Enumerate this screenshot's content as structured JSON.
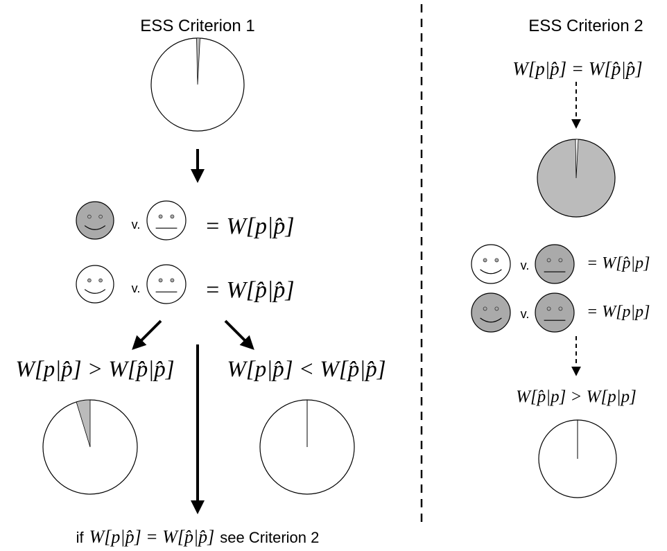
{
  "criterion_1": {
    "title": "ESS Criterion 1",
    "rows": [
      {
        "separator": "v.",
        "formula": "= W[p|p̂]"
      },
      {
        "separator": "v.",
        "formula": "= W[p̂|p̂]"
      }
    ],
    "branches": {
      "left": "W[p|p̂] > W[p̂|p̂]",
      "right": "W[p|p̂] < W[p̂|p̂]"
    },
    "footer": {
      "prefix": "if",
      "formula": "W[p|p̂] = W[p̂|p̂]",
      "suffix": "see Criterion 2"
    }
  },
  "criterion_2": {
    "title": "ESS Criterion 2",
    "condition": "W[p|p̂] = W[p̂|p̂]",
    "rows": [
      {
        "separator": "v.",
        "formula": "= W[p̂|p]"
      },
      {
        "separator": "v.",
        "formula": "= W[p|p]"
      }
    ],
    "result": "W[p̂|p] > W[p|p]"
  }
}
